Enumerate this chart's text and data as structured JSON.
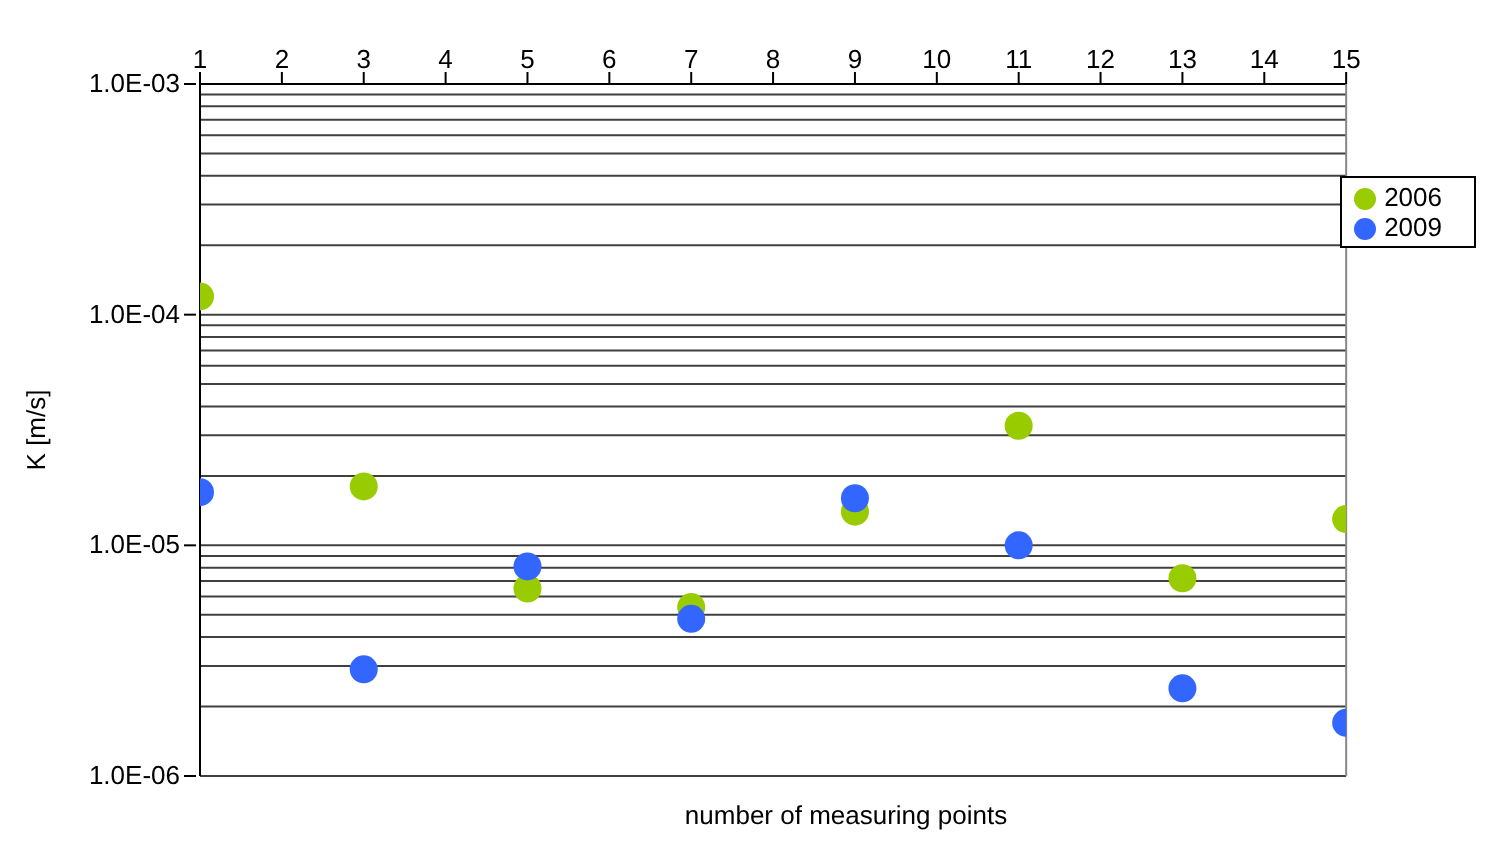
{
  "chart_data": {
    "type": "scatter",
    "xlabel": "number of measuring points",
    "ylabel": "K [m/s]",
    "x": [
      1,
      3,
      5,
      7,
      9,
      11,
      13,
      15
    ],
    "xlim": [
      1,
      15
    ],
    "xticks": [
      1,
      2,
      3,
      4,
      5,
      6,
      7,
      8,
      9,
      10,
      11,
      12,
      13,
      14,
      15
    ],
    "ylim": [
      1e-06,
      0.001
    ],
    "log": "y",
    "yticks": [
      {
        "value": 1e-06,
        "label": "1.0E-06"
      },
      {
        "value": 2e-06,
        "label": null
      },
      {
        "value": 3e-06,
        "label": null
      },
      {
        "value": 4e-06,
        "label": null
      },
      {
        "value": 5e-06,
        "label": null
      },
      {
        "value": 6e-06,
        "label": null
      },
      {
        "value": 7e-06,
        "label": null
      },
      {
        "value": 8e-06,
        "label": null
      },
      {
        "value": 9e-06,
        "label": null
      },
      {
        "value": 1e-05,
        "label": "1.0E-05"
      },
      {
        "value": 2e-05,
        "label": null
      },
      {
        "value": 3e-05,
        "label": null
      },
      {
        "value": 4e-05,
        "label": null
      },
      {
        "value": 5e-05,
        "label": null
      },
      {
        "value": 6e-05,
        "label": null
      },
      {
        "value": 7e-05,
        "label": null
      },
      {
        "value": 8e-05,
        "label": null
      },
      {
        "value": 9e-05,
        "label": null
      },
      {
        "value": 0.0001,
        "label": "1.0E-04"
      },
      {
        "value": 0.0002,
        "label": null
      },
      {
        "value": 0.0003,
        "label": null
      },
      {
        "value": 0.0004,
        "label": null
      },
      {
        "value": 0.0005,
        "label": null
      },
      {
        "value": 0.0006,
        "label": null
      },
      {
        "value": 0.0007,
        "label": null
      },
      {
        "value": 0.0008,
        "label": null
      },
      {
        "value": 0.0009,
        "label": null
      },
      {
        "value": 0.001,
        "label": "1.0E-03"
      }
    ],
    "grid": "y",
    "legend": "right",
    "marker": "circle",
    "series": [
      {
        "name": "2006",
        "color": "#99cc00",
        "values": [
          0.00012,
          1.8e-05,
          6.5e-06,
          5.4e-06,
          1.4e-05,
          3.3e-05,
          7.2e-06,
          1.3e-05
        ]
      },
      {
        "name": "2009",
        "color": "#3366ff",
        "values": [
          1.7e-05,
          2.9e-06,
          8.1e-06,
          4.8e-06,
          1.6e-05,
          1e-05,
          2.4e-06,
          1.7e-06
        ]
      }
    ]
  }
}
